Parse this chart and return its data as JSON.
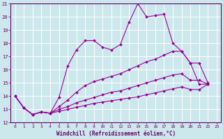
{
  "xlabel": "Windchill (Refroidissement éolien,°C)",
  "background_color": "#cce8ec",
  "line_color": "#990099",
  "grid_color": "#ffffff",
  "xlim": [
    -0.5,
    23.5
  ],
  "ylim": [
    12,
    21
  ],
  "yticks": [
    12,
    13,
    14,
    15,
    16,
    17,
    18,
    19,
    20,
    21
  ],
  "xticks": [
    0,
    1,
    2,
    3,
    4,
    5,
    6,
    7,
    8,
    9,
    10,
    11,
    12,
    13,
    14,
    15,
    16,
    17,
    18,
    19,
    20,
    21,
    22,
    23
  ],
  "line1_x": [
    0,
    1,
    2,
    3,
    4,
    5,
    6,
    7,
    8,
    9,
    10,
    11,
    12,
    13,
    14,
    15,
    16,
    17,
    18,
    19,
    20,
    21,
    22
  ],
  "line1_y": [
    14.0,
    13.1,
    12.6,
    12.8,
    12.7,
    13.9,
    16.3,
    17.5,
    18.2,
    18.2,
    17.7,
    17.5,
    17.9,
    19.6,
    21.0,
    20.0,
    20.1,
    20.2,
    18.0,
    17.4,
    16.5,
    14.9,
    14.9
  ],
  "line2_x": [
    0,
    1,
    2,
    3,
    4,
    5,
    6,
    7,
    8,
    9,
    10,
    11,
    12,
    13,
    14,
    15,
    16,
    17,
    18,
    19,
    20,
    21,
    22
  ],
  "line2_y": [
    14.0,
    13.1,
    12.6,
    12.8,
    12.7,
    13.2,
    13.7,
    14.3,
    14.8,
    15.1,
    15.3,
    15.5,
    15.7,
    16.0,
    16.3,
    16.6,
    16.8,
    17.1,
    17.4,
    17.4,
    16.5,
    16.5,
    15.0
  ],
  "line3_x": [
    0,
    1,
    2,
    3,
    4,
    5,
    6,
    7,
    8,
    9,
    10,
    11,
    12,
    13,
    14,
    15,
    16,
    17,
    18,
    19,
    20,
    21,
    22
  ],
  "line3_y": [
    14.0,
    13.1,
    12.6,
    12.8,
    12.7,
    13.0,
    13.2,
    13.5,
    13.7,
    13.9,
    14.1,
    14.3,
    14.4,
    14.6,
    14.8,
    15.0,
    15.2,
    15.4,
    15.6,
    15.7,
    15.2,
    15.2,
    14.9
  ],
  "line4_x": [
    0,
    1,
    2,
    3,
    4,
    5,
    6,
    7,
    8,
    9,
    10,
    11,
    12,
    13,
    14,
    15,
    16,
    17,
    18,
    19,
    20,
    21,
    22
  ],
  "line4_y": [
    14.0,
    13.1,
    12.6,
    12.8,
    12.7,
    12.85,
    13.0,
    13.15,
    13.3,
    13.45,
    13.55,
    13.65,
    13.75,
    13.85,
    13.95,
    14.1,
    14.25,
    14.4,
    14.55,
    14.7,
    14.5,
    14.5,
    14.9
  ]
}
